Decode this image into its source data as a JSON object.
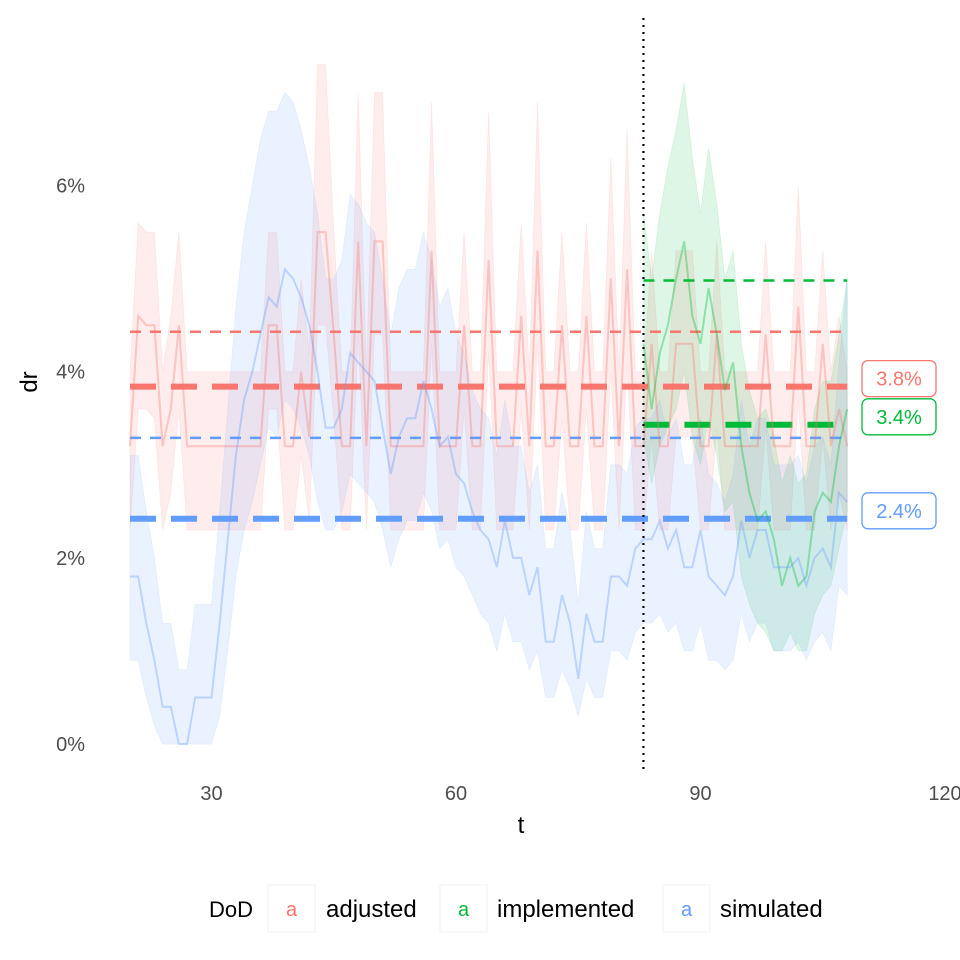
{
  "chart_data": {
    "type": "line",
    "xlabel": "t",
    "ylabel": "dr",
    "xlim": [
      20,
      120
    ],
    "ylim": [
      -0.3,
      7.8
    ],
    "x_ticks": [
      30,
      60,
      90,
      120
    ],
    "y_ticks": [
      0,
      2,
      4,
      6
    ],
    "y_tick_labels": [
      "0%",
      "2%",
      "4%",
      "6%"
    ],
    "grid": false,
    "legend_placement": "bottom",
    "legend_title": "DoD",
    "legend_glyph": "a",
    "vline_x": 83,
    "colors": {
      "adjusted": "#F8766D",
      "implemented": "#00BA38",
      "simulated": "#619CFF"
    },
    "series": [
      {
        "name": "adjusted",
        "x": [
          20,
          21,
          22,
          23,
          24,
          25,
          26,
          27,
          28,
          29,
          30,
          31,
          32,
          33,
          34,
          35,
          36,
          37,
          38,
          39,
          40,
          41,
          42,
          43,
          44,
          45,
          46,
          47,
          48,
          49,
          50,
          51,
          52,
          53,
          54,
          55,
          56,
          57,
          58,
          59,
          60,
          61,
          62,
          63,
          64,
          65,
          66,
          67,
          68,
          69,
          70,
          71,
          72,
          73,
          74,
          75,
          76,
          77,
          78,
          79,
          80,
          81,
          82,
          83,
          84,
          85,
          86,
          87,
          88,
          89,
          90,
          91,
          92,
          93,
          94,
          95,
          96,
          97,
          98,
          99,
          100,
          101,
          102,
          103,
          104,
          105,
          106,
          107,
          108
        ],
        "values": [
          3.2,
          4.6,
          4.5,
          4.5,
          3.2,
          3.6,
          4.5,
          3.2,
          3.2,
          3.2,
          3.2,
          3.2,
          3.2,
          3.2,
          3.2,
          3.2,
          3.2,
          4.5,
          4.5,
          3.2,
          3.2,
          4.0,
          3.3,
          5.5,
          5.5,
          4.4,
          3.2,
          3.2,
          5.4,
          3.2,
          5.4,
          5.4,
          3.2,
          3.2,
          3.2,
          3.2,
          3.2,
          5.3,
          3.2,
          3.2,
          3.2,
          4.5,
          3.2,
          3.2,
          5.2,
          3.2,
          3.2,
          3.2,
          4.6,
          3.2,
          5.3,
          3.2,
          3.2,
          4.5,
          3.2,
          3.2,
          4.6,
          3.2,
          3.2,
          5.0,
          3.2,
          5.1,
          3.2,
          3.2,
          4.3,
          3.2,
          3.2,
          4.3,
          4.3,
          4.3,
          3.2,
          3.2,
          4.4,
          3.2,
          3.2,
          3.2,
          3.2,
          3.2,
          4.4,
          3.2,
          3.2,
          3.2,
          4.7,
          3.2,
          3.2,
          4.3,
          3.2,
          3.6,
          3.2
        ],
        "lower": [
          2.3,
          3.6,
          3.6,
          3.5,
          2.3,
          2.7,
          3.6,
          2.3,
          2.3,
          2.3,
          2.3,
          2.3,
          2.3,
          2.3,
          2.3,
          2.3,
          2.3,
          3.6,
          3.6,
          2.3,
          2.3,
          3.1,
          2.4,
          4.5,
          4.5,
          3.5,
          2.3,
          2.3,
          4.4,
          2.3,
          4.4,
          4.4,
          2.3,
          2.3,
          2.3,
          2.3,
          2.3,
          4.3,
          2.3,
          2.3,
          2.3,
          3.6,
          2.3,
          2.3,
          4.2,
          2.3,
          2.3,
          2.3,
          3.6,
          2.3,
          4.3,
          2.3,
          2.3,
          3.5,
          2.3,
          2.3,
          3.6,
          2.3,
          2.3,
          4.0,
          2.3,
          4.1,
          2.3,
          2.3,
          3.3,
          2.3,
          2.3,
          3.3,
          3.3,
          3.3,
          2.3,
          2.3,
          3.4,
          2.3,
          2.3,
          2.3,
          2.3,
          2.3,
          3.4,
          2.3,
          2.3,
          2.3,
          3.7,
          2.3,
          2.3,
          3.3,
          2.3,
          2.7,
          2.3
        ],
        "upper": [
          4.0,
          5.6,
          5.5,
          5.5,
          4.0,
          4.6,
          5.5,
          4.0,
          4.0,
          4.0,
          4.0,
          4.0,
          4.0,
          4.0,
          4.0,
          4.0,
          4.0,
          5.5,
          5.5,
          4.0,
          4.0,
          5.0,
          4.2,
          7.3,
          7.3,
          5.5,
          4.0,
          4.0,
          7.0,
          4.0,
          7.0,
          7.0,
          4.0,
          4.0,
          4.0,
          4.0,
          4.0,
          6.9,
          4.0,
          4.0,
          4.0,
          5.5,
          4.0,
          4.0,
          6.8,
          4.0,
          4.0,
          4.0,
          5.6,
          4.0,
          6.9,
          4.0,
          4.0,
          5.5,
          4.0,
          4.0,
          5.6,
          4.0,
          4.0,
          6.3,
          4.0,
          6.6,
          4.0,
          4.0,
          5.3,
          4.0,
          4.0,
          5.3,
          5.3,
          5.3,
          4.0,
          4.0,
          5.4,
          4.0,
          4.0,
          4.0,
          4.0,
          4.0,
          5.4,
          4.0,
          4.0,
          4.0,
          6.0,
          4.0,
          4.0,
          5.3,
          4.0,
          4.6,
          4.0
        ]
      },
      {
        "name": "implemented",
        "x": [
          83,
          84,
          85,
          86,
          87,
          88,
          89,
          90,
          91,
          92,
          93,
          94,
          95,
          96,
          97,
          98,
          99,
          100,
          101,
          102,
          103,
          104,
          105,
          106,
          107,
          108
        ],
        "values": [
          4.3,
          3.6,
          4.2,
          4.5,
          5.0,
          5.4,
          4.6,
          4.3,
          4.9,
          4.4,
          3.8,
          4.1,
          3.2,
          2.7,
          2.4,
          2.5,
          2.2,
          1.7,
          2.0,
          1.7,
          1.8,
          2.5,
          2.7,
          2.6,
          3.2,
          3.6
        ],
        "lower": [
          3.3,
          2.8,
          3.2,
          3.4,
          3.6,
          4.0,
          3.3,
          3.0,
          3.5,
          3.1,
          2.5,
          2.6,
          1.8,
          1.5,
          1.3,
          1.2,
          1.0,
          1.0,
          1.2,
          1.0,
          1.0,
          1.4,
          1.6,
          1.7,
          2.1,
          2.5
        ],
        "upper": [
          5.7,
          5.0,
          5.7,
          6.2,
          6.6,
          7.1,
          6.3,
          5.7,
          6.4,
          5.8,
          5.0,
          5.3,
          4.3,
          3.8,
          3.5,
          3.6,
          3.3,
          2.8,
          3.1,
          2.8,
          2.9,
          3.6,
          3.9,
          3.9,
          4.4,
          5.0
        ]
      },
      {
        "name": "simulated",
        "x": [
          20,
          21,
          22,
          23,
          24,
          25,
          26,
          27,
          28,
          29,
          30,
          31,
          32,
          33,
          34,
          35,
          36,
          37,
          38,
          39,
          40,
          41,
          42,
          43,
          44,
          45,
          46,
          47,
          48,
          49,
          50,
          51,
          52,
          53,
          54,
          55,
          56,
          57,
          58,
          59,
          60,
          61,
          62,
          63,
          64,
          65,
          66,
          67,
          68,
          69,
          70,
          71,
          72,
          73,
          74,
          75,
          76,
          77,
          78,
          79,
          80,
          81,
          82,
          83,
          84,
          85,
          86,
          87,
          88,
          89,
          90,
          91,
          92,
          93,
          94,
          95,
          96,
          97,
          98,
          99,
          100,
          101,
          102,
          103,
          104,
          105,
          106,
          107,
          108
        ],
        "values": [
          1.8,
          1.8,
          1.3,
          0.9,
          0.4,
          0.4,
          0.0,
          0.0,
          0.5,
          0.5,
          0.5,
          1.3,
          2.2,
          3.1,
          3.7,
          4.0,
          4.4,
          4.8,
          4.7,
          5.1,
          5.0,
          4.8,
          4.5,
          4.0,
          3.4,
          3.4,
          3.6,
          4.2,
          4.1,
          4.0,
          3.9,
          3.4,
          2.9,
          3.3,
          3.5,
          3.5,
          3.9,
          3.6,
          3.2,
          3.3,
          2.9,
          2.8,
          2.5,
          2.3,
          2.2,
          1.9,
          2.4,
          2.0,
          2.0,
          1.6,
          1.9,
          1.1,
          1.1,
          1.6,
          1.3,
          0.7,
          1.4,
          1.1,
          1.1,
          1.8,
          1.8,
          1.7,
          2.1,
          2.2,
          2.2,
          2.4,
          2.1,
          2.3,
          1.9,
          1.9,
          2.3,
          1.8,
          1.7,
          1.6,
          1.8,
          2.4,
          2.0,
          2.3,
          2.3,
          1.9,
          1.9,
          1.9,
          2.0,
          1.7,
          2.0,
          2.1,
          1.9,
          2.7,
          2.6
        ],
        "lower": [
          0.9,
          0.9,
          0.5,
          0.2,
          0.0,
          0.0,
          0.0,
          0.0,
          0.0,
          0.0,
          0.0,
          0.3,
          1.0,
          1.8,
          2.3,
          2.6,
          3.0,
          3.4,
          3.3,
          3.7,
          3.6,
          3.4,
          3.1,
          2.6,
          2.3,
          2.3,
          2.5,
          2.9,
          2.8,
          2.7,
          2.6,
          2.3,
          1.9,
          2.2,
          2.4,
          2.4,
          2.7,
          2.5,
          2.1,
          2.2,
          1.9,
          1.8,
          1.6,
          1.4,
          1.3,
          1.0,
          1.4,
          1.1,
          1.1,
          0.8,
          1.0,
          0.5,
          0.5,
          0.8,
          0.6,
          0.3,
          0.7,
          0.5,
          0.5,
          1.0,
          1.0,
          0.9,
          1.2,
          1.3,
          1.3,
          1.4,
          1.2,
          1.3,
          1.0,
          1.0,
          1.3,
          0.9,
          0.9,
          0.8,
          0.9,
          1.4,
          1.1,
          1.3,
          1.3,
          1.0,
          1.0,
          1.0,
          1.1,
          0.9,
          1.1,
          1.2,
          1.0,
          1.7,
          1.6
        ],
        "upper": [
          3.1,
          3.1,
          2.5,
          2.0,
          1.3,
          1.3,
          0.8,
          0.8,
          1.5,
          1.5,
          1.5,
          2.5,
          3.6,
          4.7,
          5.5,
          6.0,
          6.5,
          6.8,
          6.8,
          7.0,
          6.9,
          6.6,
          6.2,
          5.7,
          5.0,
          5.0,
          5.2,
          5.9,
          5.8,
          5.6,
          5.5,
          5.0,
          4.4,
          4.9,
          5.1,
          5.1,
          5.5,
          5.2,
          4.7,
          4.9,
          4.4,
          4.2,
          3.8,
          3.6,
          3.5,
          3.1,
          3.7,
          3.2,
          3.2,
          2.7,
          3.0,
          2.1,
          2.1,
          2.7,
          2.3,
          1.5,
          2.5,
          2.1,
          2.1,
          3.0,
          3.0,
          2.9,
          3.4,
          3.5,
          3.5,
          3.7,
          3.3,
          3.5,
          3.0,
          3.0,
          3.5,
          2.9,
          2.8,
          2.6,
          2.9,
          3.7,
          3.2,
          3.5,
          3.5,
          3.0,
          3.0,
          3.0,
          3.1,
          2.8,
          3.2,
          3.3,
          3.0,
          4.1,
          5.0
        ]
      }
    ],
    "reference_lines": [
      {
        "series": "adjusted",
        "y": 3.84,
        "x_from": 20,
        "x_to": 108,
        "style": "thick-dashed",
        "label": "3.8%"
      },
      {
        "series": "adjusted",
        "y": 4.43,
        "x_from": 20,
        "x_to": 108,
        "style": "thin-dashed"
      },
      {
        "series": "implemented",
        "y": 3.43,
        "x_from": 83,
        "x_to": 108,
        "style": "thick-dashed",
        "label": "3.4%"
      },
      {
        "series": "implemented",
        "y": 4.98,
        "x_from": 83,
        "x_to": 108,
        "style": "thin-dashed"
      },
      {
        "series": "simulated",
        "y": 2.42,
        "x_from": 20,
        "x_to": 108,
        "style": "thick-dashed",
        "label": "2.4%"
      },
      {
        "series": "simulated",
        "y": 3.29,
        "x_from": 20,
        "x_to": 108,
        "style": "thin-dashed"
      }
    ]
  }
}
